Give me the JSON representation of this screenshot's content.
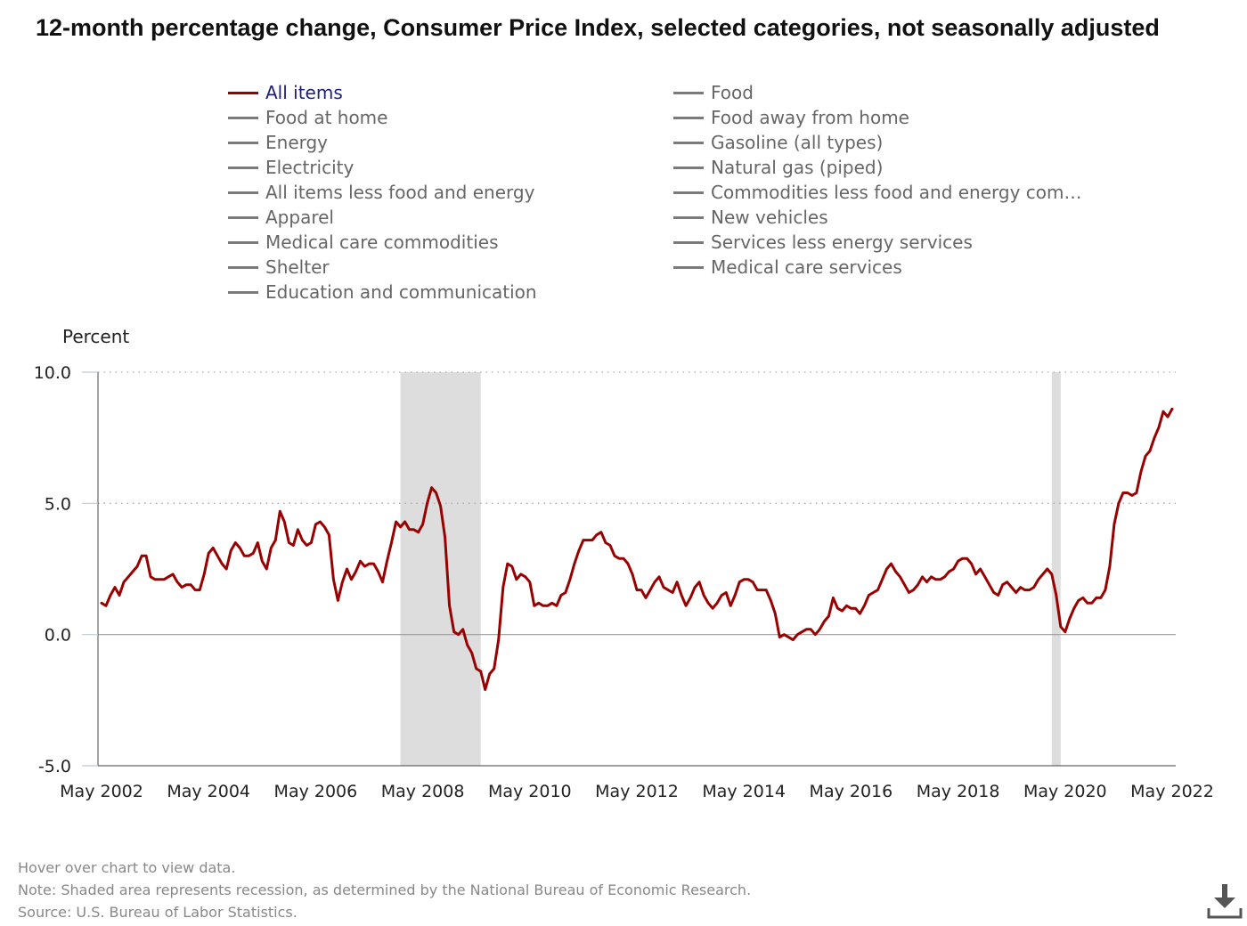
{
  "title": "12-month percentage change, Consumer Price Index, selected categories, not seasonally adjusted",
  "legend": {
    "active_color": "#990000",
    "inactive_color": "#7a7a7a",
    "items": [
      {
        "label": "All items",
        "active": true
      },
      {
        "label": "Food",
        "active": false
      },
      {
        "label": "Food at home",
        "active": false
      },
      {
        "label": "Food away from home",
        "active": false
      },
      {
        "label": "Energy",
        "active": false
      },
      {
        "label": "Gasoline (all types)",
        "active": false
      },
      {
        "label": "Electricity",
        "active": false
      },
      {
        "label": "Natural gas (piped)",
        "active": false
      },
      {
        "label": "All items less food and energy",
        "active": false
      },
      {
        "label": "Commodities less food and energy com…",
        "active": false
      },
      {
        "label": "Apparel",
        "active": false
      },
      {
        "label": "New vehicles",
        "active": false
      },
      {
        "label": "Medical care commodities",
        "active": false
      },
      {
        "label": "Services less energy services",
        "active": false
      },
      {
        "label": "Shelter",
        "active": false
      },
      {
        "label": "Medical care services",
        "active": false
      },
      {
        "label": "Education and communication",
        "active": false
      }
    ]
  },
  "footer": {
    "hover_hint": "Hover over chart to view data.",
    "note": "Note: Shaded area represents recession, as determined by the National Bureau of Economic Research.",
    "source": "Source: U.S. Bureau of Labor Statistics."
  },
  "download_icon": "download-icon",
  "chart_data": {
    "type": "line",
    "ylabel": "Percent",
    "ylim": [
      -5,
      10
    ],
    "yticks": [
      -5,
      0,
      5,
      10
    ],
    "ytick_labels": [
      "-5.0",
      "0.0",
      "5.0",
      "10.0"
    ],
    "grid": "dotted horizontal at 5.0 and 10.0",
    "x_start": "May 2002",
    "x_end": "May 2022",
    "xtick_labels": [
      "May 2002",
      "May 2004",
      "May 2006",
      "May 2008",
      "May 2010",
      "May 2012",
      "May 2014",
      "May 2016",
      "May 2018",
      "May 2020",
      "May 2022"
    ],
    "recessions": [
      {
        "start": "December 2007",
        "end": "June 2009"
      },
      {
        "start": "February 2020",
        "end": "April 2020"
      }
    ],
    "recession_color": "#dddddd",
    "series": [
      {
        "name": "All items",
        "color": "#990000",
        "values": [
          1.2,
          1.1,
          1.5,
          1.8,
          1.5,
          2.0,
          2.2,
          2.4,
          2.6,
          3.0,
          3.0,
          2.2,
          2.1,
          2.1,
          2.1,
          2.2,
          2.3,
          2.0,
          1.8,
          1.9,
          1.9,
          1.7,
          1.7,
          2.3,
          3.1,
          3.3,
          3.0,
          2.7,
          2.5,
          3.2,
          3.5,
          3.3,
          3.0,
          3.0,
          3.1,
          3.5,
          2.8,
          2.5,
          3.3,
          3.6,
          4.7,
          4.3,
          3.5,
          3.4,
          4.0,
          3.6,
          3.4,
          3.5,
          4.2,
          4.3,
          4.1,
          3.8,
          2.1,
          1.3,
          2.0,
          2.5,
          2.1,
          2.4,
          2.8,
          2.6,
          2.7,
          2.7,
          2.4,
          2.0,
          2.8,
          3.5,
          4.3,
          4.1,
          4.3,
          4.0,
          4.0,
          3.9,
          4.2,
          5.0,
          5.6,
          5.4,
          4.9,
          3.7,
          1.1,
          0.1,
          0.0,
          0.2,
          -0.4,
          -0.7,
          -1.3,
          -1.4,
          -2.1,
          -1.5,
          -1.3,
          -0.2,
          1.8,
          2.7,
          2.6,
          2.1,
          2.3,
          2.2,
          2.0,
          1.1,
          1.2,
          1.1,
          1.1,
          1.2,
          1.1,
          1.5,
          1.6,
          2.1,
          2.7,
          3.2,
          3.6,
          3.6,
          3.6,
          3.8,
          3.9,
          3.5,
          3.4,
          3.0,
          2.9,
          2.9,
          2.7,
          2.3,
          1.7,
          1.7,
          1.4,
          1.7,
          2.0,
          2.2,
          1.8,
          1.7,
          1.6,
          2.0,
          1.5,
          1.1,
          1.4,
          1.8,
          2.0,
          1.5,
          1.2,
          1.0,
          1.2,
          1.5,
          1.6,
          1.1,
          1.5,
          2.0,
          2.1,
          2.1,
          2.0,
          1.7,
          1.7,
          1.7,
          1.3,
          0.8,
          -0.1,
          0.0,
          -0.1,
          -0.2,
          0.0,
          0.1,
          0.2,
          0.2,
          0.0,
          0.2,
          0.5,
          0.7,
          1.4,
          1.0,
          0.9,
          1.1,
          1.0,
          1.0,
          0.8,
          1.1,
          1.5,
          1.6,
          1.7,
          2.1,
          2.5,
          2.7,
          2.4,
          2.2,
          1.9,
          1.6,
          1.7,
          1.9,
          2.2,
          2.0,
          2.2,
          2.1,
          2.1,
          2.2,
          2.4,
          2.5,
          2.8,
          2.9,
          2.9,
          2.7,
          2.3,
          2.5,
          2.2,
          1.9,
          1.6,
          1.5,
          1.9,
          2.0,
          1.8,
          1.6,
          1.8,
          1.7,
          1.7,
          1.8,
          2.1,
          2.3,
          2.5,
          2.3,
          1.5,
          0.3,
          0.1,
          0.6,
          1.0,
          1.3,
          1.4,
          1.2,
          1.2,
          1.4,
          1.4,
          1.7,
          2.6,
          4.2,
          5.0,
          5.4,
          5.4,
          5.3,
          5.4,
          6.2,
          6.8,
          7.0,
          7.5,
          7.9,
          8.5,
          8.3,
          8.6
        ]
      }
    ]
  }
}
